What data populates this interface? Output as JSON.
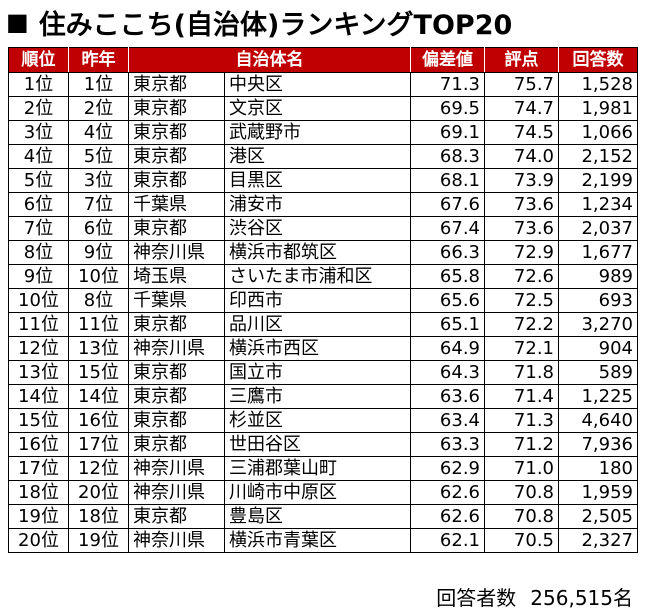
{
  "title": {
    "mark": "■",
    "text": "住みここち(自治体)ランキングTOP20"
  },
  "headers": [
    "順位",
    "昨年",
    "自治体名",
    "",
    "偏差値",
    "評点",
    "回答数"
  ],
  "rows": [
    {
      "rank": "1位",
      "last": "1位",
      "pref": "東京都",
      "city": "中央区",
      "dev": "71.3",
      "score": "75.7",
      "count": "1,528"
    },
    {
      "rank": "2位",
      "last": "2位",
      "pref": "東京都",
      "city": "文京区",
      "dev": "69.5",
      "score": "74.7",
      "count": "1,981"
    },
    {
      "rank": "3位",
      "last": "4位",
      "pref": "東京都",
      "city": "武蔵野市",
      "dev": "69.1",
      "score": "74.5",
      "count": "1,066"
    },
    {
      "rank": "4位",
      "last": "5位",
      "pref": "東京都",
      "city": "港区",
      "dev": "68.3",
      "score": "74.0",
      "count": "2,152"
    },
    {
      "rank": "5位",
      "last": "3位",
      "pref": "東京都",
      "city": "目黒区",
      "dev": "68.1",
      "score": "73.9",
      "count": "2,199"
    },
    {
      "rank": "6位",
      "last": "7位",
      "pref": "千葉県",
      "city": "浦安市",
      "dev": "67.6",
      "score": "73.6",
      "count": "1,234"
    },
    {
      "rank": "7位",
      "last": "6位",
      "pref": "東京都",
      "city": "渋谷区",
      "dev": "67.4",
      "score": "73.6",
      "count": "2,037"
    },
    {
      "rank": "8位",
      "last": "9位",
      "pref": "神奈川県",
      "city": "横浜市都筑区",
      "dev": "66.3",
      "score": "72.9",
      "count": "1,677"
    },
    {
      "rank": "9位",
      "last": "10位",
      "pref": "埼玉県",
      "city": "さいたま市浦和区",
      "dev": "65.8",
      "score": "72.6",
      "count": "989"
    },
    {
      "rank": "10位",
      "last": "8位",
      "pref": "千葉県",
      "city": "印西市",
      "dev": "65.6",
      "score": "72.5",
      "count": "693"
    },
    {
      "rank": "11位",
      "last": "11位",
      "pref": "東京都",
      "city": "品川区",
      "dev": "65.1",
      "score": "72.2",
      "count": "3,270"
    },
    {
      "rank": "12位",
      "last": "13位",
      "pref": "神奈川県",
      "city": "横浜市西区",
      "dev": "64.9",
      "score": "72.1",
      "count": "904"
    },
    {
      "rank": "13位",
      "last": "15位",
      "pref": "東京都",
      "city": "国立市",
      "dev": "64.3",
      "score": "71.8",
      "count": "589"
    },
    {
      "rank": "14位",
      "last": "14位",
      "pref": "東京都",
      "city": "三鷹市",
      "dev": "63.6",
      "score": "71.4",
      "count": "1,225"
    },
    {
      "rank": "15位",
      "last": "16位",
      "pref": "東京都",
      "city": "杉並区",
      "dev": "63.4",
      "score": "71.3",
      "count": "4,640"
    },
    {
      "rank": "16位",
      "last": "17位",
      "pref": "東京都",
      "city": "世田谷区",
      "dev": "63.3",
      "score": "71.2",
      "count": "7,936"
    },
    {
      "rank": "17位",
      "last": "12位",
      "pref": "神奈川県",
      "city": "三浦郡葉山町",
      "dev": "62.9",
      "score": "71.0",
      "count": "180"
    },
    {
      "rank": "18位",
      "last": "20位",
      "pref": "神奈川県",
      "city": "川崎市中原区",
      "dev": "62.6",
      "score": "70.8",
      "count": "1,959"
    },
    {
      "rank": "19位",
      "last": "18位",
      "pref": "東京都",
      "city": "豊島区",
      "dev": "62.6",
      "score": "70.8",
      "count": "2,505"
    },
    {
      "rank": "20位",
      "last": "19位",
      "pref": "神奈川県",
      "city": "横浜市青葉区",
      "dev": "62.1",
      "score": "70.5",
      "count": "2,327"
    }
  ],
  "footer": {
    "label": "回答者数",
    "total": "256,515名"
  },
  "colors": {
    "header_bg": "#c00000",
    "header_text": "#ffffff"
  }
}
